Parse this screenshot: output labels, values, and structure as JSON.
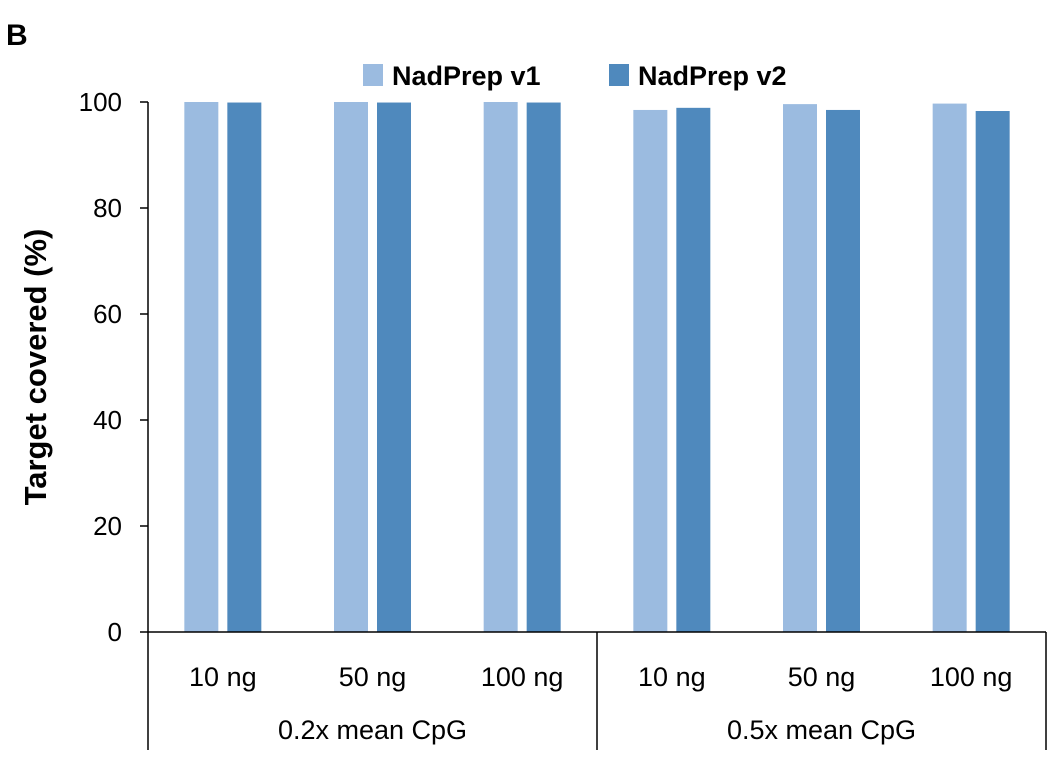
{
  "panel_label": "B",
  "colors": {
    "v1": "#9bbbe0",
    "v2": "#4f89bd",
    "axis": "#000000"
  },
  "chart_data": {
    "type": "bar",
    "ylabel": "Target covered (%)",
    "xlabel": "",
    "ylim": [
      0,
      100
    ],
    "yticks": [
      0,
      20,
      40,
      60,
      80,
      100
    ],
    "grid": false,
    "legend_position": "top",
    "groups": [
      {
        "label": "0.2x mean CpG",
        "categories": [
          "10 ng",
          "50 ng",
          "100 ng"
        ]
      },
      {
        "label": "0.5x mean CpG",
        "categories": [
          "10 ng",
          "50 ng",
          "100 ng"
        ]
      }
    ],
    "categories": [
      "10 ng",
      "50 ng",
      "100 ng",
      "10 ng",
      "50 ng",
      "100 ng"
    ],
    "series": [
      {
        "name": "NadPrep v1",
        "values": [
          100.0,
          100.0,
          100.0,
          98.5,
          99.6,
          99.7
        ]
      },
      {
        "name": "NadPrep v2",
        "values": [
          99.9,
          99.9,
          99.9,
          98.9,
          98.5,
          98.3
        ]
      }
    ]
  }
}
